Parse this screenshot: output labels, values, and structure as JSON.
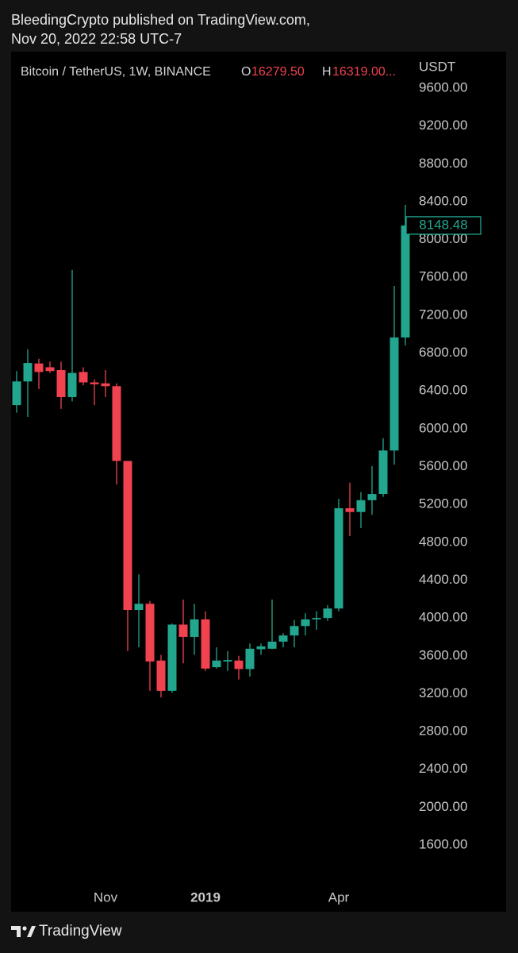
{
  "chart_data": {
    "type": "candlestick",
    "publisher_line": "BleedingCrypto published on TradingView.com,",
    "date_line": "Nov 20, 2022 22:58 UTC-7",
    "symbol": "Bitcoin / TetherUS, 1W, BINANCE",
    "legend": {
      "o_label": "O",
      "o_value": "16279.50",
      "h_label": "H",
      "h_value": "16319.00..."
    },
    "y_unit": "USDT",
    "footer": "TradingView",
    "up_color": "#22a68e",
    "down_color": "#f0424f",
    "categories": [
      null,
      null,
      null,
      null,
      null,
      null,
      null,
      null,
      "Nov",
      null,
      null,
      null,
      null,
      null,
      null,
      null,
      null,
      "2019",
      null,
      null,
      null,
      null,
      null,
      null,
      null,
      null,
      null,
      null,
      null,
      "Apr",
      null,
      null,
      null,
      null,
      null,
      null
    ],
    "open": [
      6250,
      6500,
      6690,
      6650,
      6620,
      6335,
      6600,
      6490,
      6480,
      6450,
      5660,
      4085,
      4150,
      3550,
      3230,
      3930,
      3800,
      3985,
      3480,
      3540,
      3550,
      3460,
      3670,
      3675,
      3750,
      3815,
      3915,
      3985,
      4000,
      4100,
      5160,
      5120,
      5245,
      5310,
      5770,
      6965
    ],
    "high": [
      6610,
      6840,
      6740,
      6710,
      6710,
      7680,
      6650,
      6520,
      6620,
      6480,
      5660,
      4460,
      4180,
      3610,
      3940,
      4195,
      4150,
      4070,
      3690,
      3650,
      3600,
      3730,
      3730,
      4195,
      3840,
      3980,
      4050,
      4070,
      4135,
      5260,
      5430,
      5330,
      5605,
      5900,
      7510,
      8366
    ],
    "low": [
      6170,
      6125,
      6420,
      6590,
      6210,
      6290,
      6460,
      6250,
      6335,
      5410,
      3650,
      3690,
      3230,
      3160,
      3210,
      3520,
      3610,
      3440,
      3465,
      3440,
      3350,
      3380,
      3610,
      3670,
      3690,
      3690,
      3815,
      3875,
      3970,
      4070,
      4865,
      4950,
      5090,
      5280,
      5620,
      6880
    ],
    "close": [
      6500,
      6695,
      6600,
      6610,
      6335,
      6590,
      6490,
      6470,
      6450,
      5660,
      4085,
      4150,
      3540,
      3230,
      3930,
      3800,
      3985,
      3465,
      3550,
      3555,
      3460,
      3675,
      3700,
      3750,
      3815,
      3915,
      3985,
      4000,
      4100,
      5160,
      5120,
      5245,
      5310,
      5770,
      6965,
      8148.48
    ],
    "ylim": [
      1200,
      10000
    ],
    "yticks": [
      {
        "value": 1600,
        "label": "1600.00"
      },
      {
        "value": 2000,
        "label": "2000.00"
      },
      {
        "value": 2400,
        "label": "2400.00"
      },
      {
        "value": 2800,
        "label": "2800.00"
      },
      {
        "value": 3200,
        "label": "3200.00"
      },
      {
        "value": 3600,
        "label": "3600.00"
      },
      {
        "value": 4000,
        "label": "4000.00"
      },
      {
        "value": 4400,
        "label": "4400.00"
      },
      {
        "value": 4800,
        "label": "4800.00"
      },
      {
        "value": 5200,
        "label": "5200.00"
      },
      {
        "value": 5600,
        "label": "5600.00"
      },
      {
        "value": 6000,
        "label": "6000.00"
      },
      {
        "value": 6400,
        "label": "6400.00"
      },
      {
        "value": 6800,
        "label": "6800.00"
      },
      {
        "value": 7200,
        "label": "7200.00"
      },
      {
        "value": 7600,
        "label": "7600.00"
      },
      {
        "value": 8000,
        "label": "8000.00"
      },
      {
        "value": 8400,
        "label": "8400.00"
      },
      {
        "value": 8800,
        "label": "8800.00"
      },
      {
        "value": 9200,
        "label": "9200.00"
      },
      {
        "value": 9600,
        "label": "9600.00"
      }
    ],
    "grid": false
  }
}
